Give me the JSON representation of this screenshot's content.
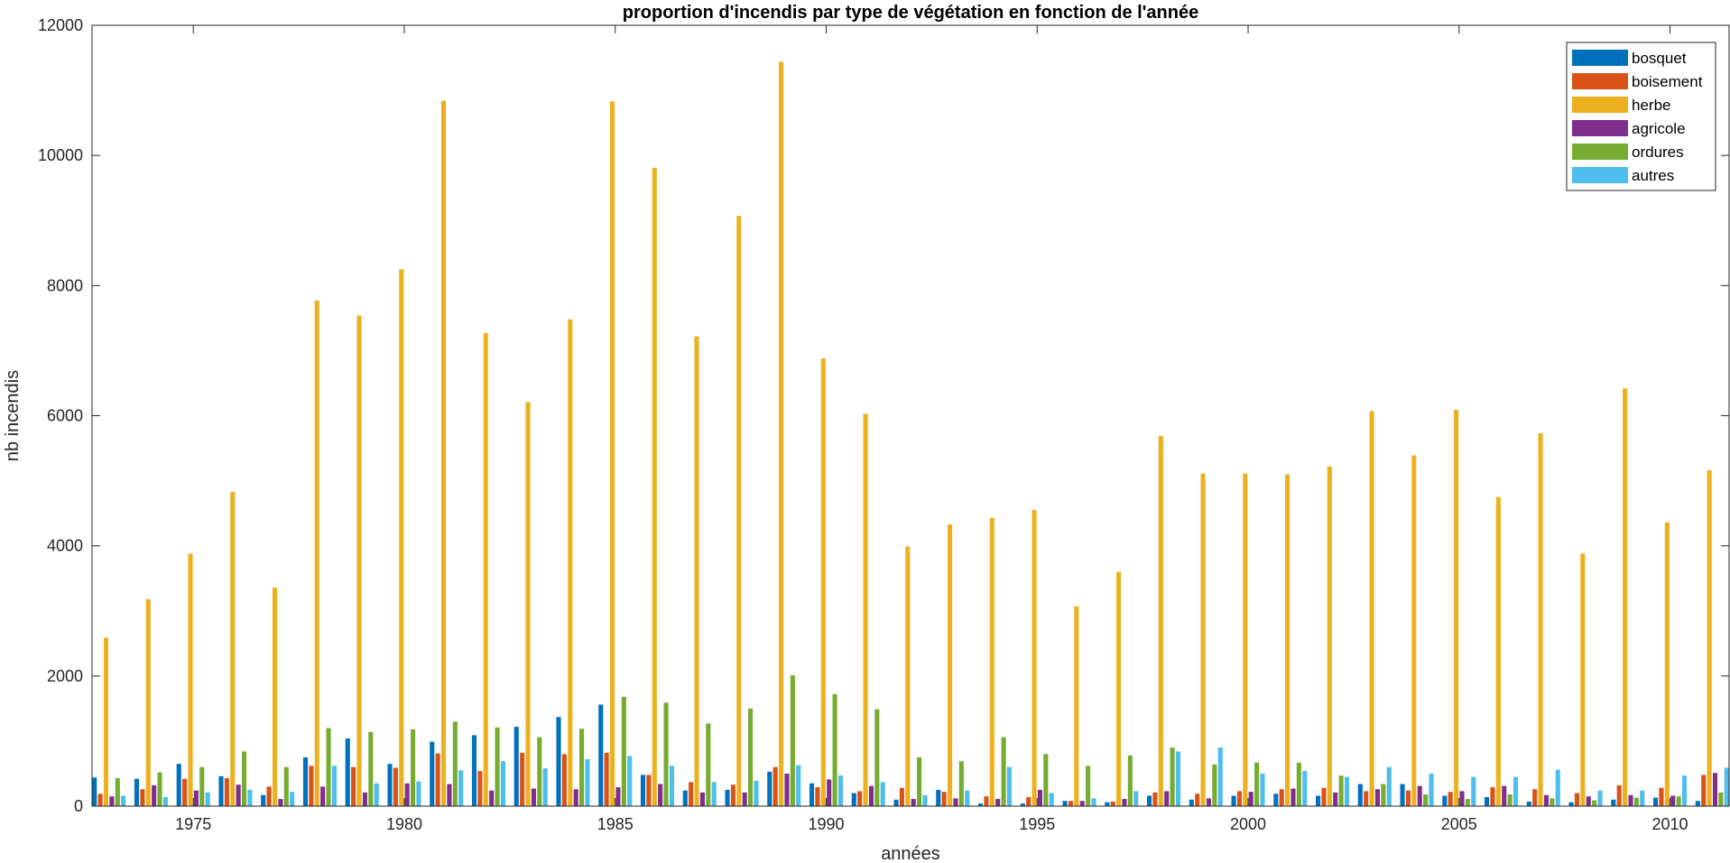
{
  "chart_data": {
    "type": "bar",
    "title": "proportion d'incendis par type de végétation en fonction de l'année",
    "xlabel": "années",
    "ylabel": "nb incendis",
    "ylim": [
      0,
      12000
    ],
    "xlim": [
      1972.6,
      2011.4
    ],
    "yticks": [
      0,
      2000,
      4000,
      6000,
      8000,
      10000,
      12000
    ],
    "xticks": [
      1975,
      1980,
      1985,
      1990,
      1995,
      2000,
      2005,
      2010
    ],
    "grid": false,
    "legend_position": "top-right",
    "categories": [
      1973,
      1974,
      1975,
      1976,
      1977,
      1978,
      1979,
      1980,
      1981,
      1982,
      1983,
      1984,
      1985,
      1986,
      1987,
      1988,
      1989,
      1990,
      1991,
      1992,
      1993,
      1994,
      1995,
      1996,
      1997,
      1998,
      1999,
      2000,
      2001,
      2002,
      2003,
      2004,
      2005,
      2006,
      2007,
      2008,
      2009,
      2010,
      2011
    ],
    "series": [
      {
        "name": "bosquet",
        "color": "#0072BD",
        "values": [
          440,
          420,
          650,
          460,
          170,
          750,
          1040,
          650,
          990,
          1090,
          1220,
          1370,
          1560,
          480,
          240,
          250,
          530,
          350,
          200,
          100,
          250,
          40,
          40,
          80,
          60,
          160,
          100,
          160,
          190,
          160,
          340,
          340,
          160,
          140,
          70,
          60,
          100,
          130,
          80
        ]
      },
      {
        "name": "boisement",
        "color": "#D95319",
        "values": [
          190,
          260,
          420,
          430,
          300,
          620,
          600,
          590,
          810,
          540,
          820,
          800,
          820,
          480,
          370,
          330,
          600,
          290,
          230,
          280,
          220,
          150,
          140,
          80,
          70,
          210,
          190,
          230,
          260,
          280,
          230,
          240,
          220,
          290,
          260,
          200,
          320,
          280,
          480
        ]
      },
      {
        "name": "herbe",
        "color": "#EDB120",
        "values": [
          2590,
          3180,
          3880,
          4830,
          3360,
          7770,
          7540,
          8250,
          10840,
          7270,
          6210,
          7480,
          10830,
          9810,
          7220,
          9070,
          11440,
          6880,
          6030,
          3990,
          4330,
          4430,
          4550,
          3070,
          3600,
          5690,
          5110,
          5110,
          5100,
          5220,
          6070,
          5390,
          6090,
          4750,
          5730,
          3880,
          6420,
          4360,
          5160
        ]
      },
      {
        "name": "agricole",
        "color": "#7E2F8E",
        "values": [
          150,
          320,
          240,
          330,
          110,
          300,
          210,
          350,
          340,
          240,
          270,
          260,
          290,
          340,
          210,
          210,
          500,
          410,
          310,
          110,
          120,
          110,
          250,
          80,
          110,
          230,
          120,
          220,
          270,
          210,
          260,
          310,
          230,
          310,
          170,
          150,
          170,
          160,
          510
        ]
      },
      {
        "name": "ordures",
        "color": "#77AC30",
        "values": [
          430,
          520,
          600,
          840,
          600,
          1200,
          1140,
          1180,
          1300,
          1210,
          1060,
          1190,
          1680,
          1590,
          1270,
          1500,
          2010,
          1720,
          1490,
          750,
          690,
          1060,
          800,
          620,
          780,
          900,
          640,
          670,
          670,
          470,
          340,
          180,
          110,
          180,
          120,
          90,
          130,
          150,
          210
        ]
      },
      {
        "name": "autres",
        "color": "#4DBEEE",
        "values": [
          160,
          140,
          210,
          250,
          220,
          620,
          350,
          380,
          550,
          690,
          580,
          720,
          770,
          620,
          370,
          390,
          630,
          470,
          370,
          170,
          240,
          600,
          200,
          120,
          230,
          840,
          900,
          500,
          540,
          450,
          600,
          500,
          450,
          450,
          560,
          240,
          240,
          470,
          590
        ]
      }
    ]
  }
}
